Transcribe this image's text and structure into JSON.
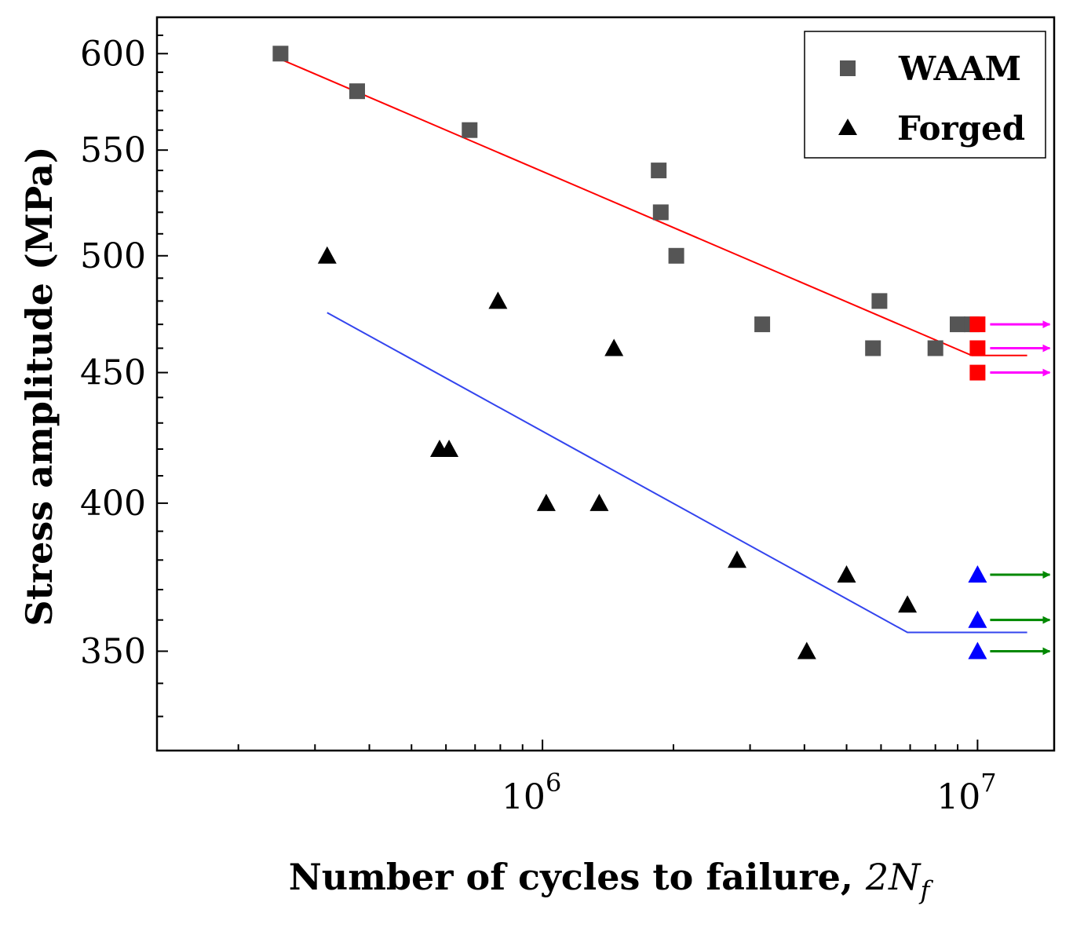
{
  "chart_data": {
    "type": "scatter",
    "title": "",
    "xlabel": "Number of cycles to failure, ",
    "xlabel_math": "2N",
    "xlabel_sub": "f",
    "ylabel": "Stress amplitude (MPa)",
    "x_scale": "log",
    "y_scale": "log",
    "xlim": [
      130000,
      15000000
    ],
    "ylim": [
      320,
      620
    ],
    "x_ticks": [
      {
        "value": 1000000,
        "base": "10",
        "exp": "6"
      },
      {
        "value": 10000000,
        "base": "10",
        "exp": "7"
      }
    ],
    "y_ticks": [
      {
        "value": 350,
        "label": "350"
      },
      {
        "value": 400,
        "label": "400"
      },
      {
        "value": 450,
        "label": "450"
      },
      {
        "value": 500,
        "label": "500"
      },
      {
        "value": 550,
        "label": "550"
      },
      {
        "value": 600,
        "label": "600"
      }
    ],
    "legend": {
      "position": "top-right",
      "entries": [
        {
          "label": "WAAM",
          "marker": "square",
          "color": "#555555"
        },
        {
          "label": "Forged",
          "marker": "triangle",
          "color": "#000000"
        }
      ]
    },
    "series": [
      {
        "name": "WAAM",
        "marker": "square",
        "color": "#555555",
        "x": [
          250000,
          375000,
          680000,
          1850000,
          1870000,
          2030000,
          3200000,
          5750000,
          5950000,
          8000000,
          9000000,
          9700000
        ],
        "y": [
          600,
          580,
          560,
          540,
          520,
          500,
          470,
          460,
          480,
          460,
          470,
          470
        ]
      },
      {
        "name": "Forged",
        "marker": "triangle",
        "color": "#000000",
        "x": [
          320000,
          580000,
          610000,
          790000,
          1020000,
          1350000,
          1460000,
          2800000,
          4050000,
          5000000,
          6900000
        ],
        "y": [
          500,
          420,
          420,
          480,
          400,
          400,
          460,
          380,
          350,
          375,
          365
        ]
      },
      {
        "name": "WAAM runout",
        "marker": "square",
        "color": "#ff0000",
        "runout_arrow_color": "#ff00ff",
        "x": [
          10000000,
          10000000,
          10000000
        ],
        "y": [
          470,
          460,
          450
        ]
      },
      {
        "name": "Forged runout",
        "marker": "triangle",
        "color": "#0000ff",
        "runout_arrow_color": "#008800",
        "x": [
          10000000,
          10000000,
          10000000
        ],
        "y": [
          375,
          360,
          350
        ]
      }
    ],
    "fit_lines": [
      {
        "name": "WAAM fit",
        "color": "#ff0000",
        "points": [
          [
            250000,
            597
          ],
          [
            9700000,
            457
          ]
        ],
        "horizontal_to": [
          13000000,
          457
        ]
      },
      {
        "name": "Forged fit",
        "color": "#3344ee",
        "points": [
          [
            320000,
            475
          ],
          [
            6900000,
            356
          ]
        ],
        "horizontal_to": [
          13000000,
          356
        ]
      }
    ]
  }
}
